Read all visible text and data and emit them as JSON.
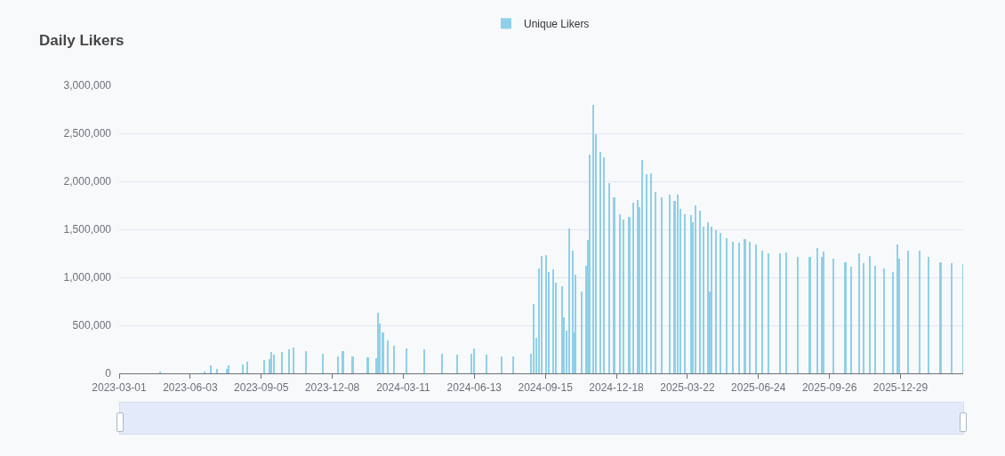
{
  "chart_data": {
    "type": "bar",
    "title": "Daily Likers",
    "legend": "top",
    "grid": "y",
    "x": [
      "2023-03-01",
      "2023-04-24",
      "2023-06-22",
      "2023-06-30",
      "2023-07-08",
      "2023-07-21",
      "2023-07-24",
      "2023-08-12",
      "2023-08-18",
      "2023-09-09",
      "2023-09-16",
      "2023-09-18",
      "2023-09-22",
      "2023-10-02",
      "2023-10-12",
      "2023-10-18",
      "2023-11-03",
      "2023-11-26",
      "2023-12-16",
      "2023-12-22",
      "2024-01-04",
      "2024-01-24",
      "2024-02-04",
      "2024-02-06",
      "2024-02-09",
      "2024-02-13",
      "2024-02-19",
      "2024-02-28",
      "2024-03-15",
      "2024-04-08",
      "2024-05-01",
      "2024-05-21",
      "2024-06-09",
      "2024-06-13",
      "2024-06-29",
      "2024-07-19",
      "2024-08-03",
      "2024-08-27",
      "2024-08-30",
      "2024-09-01",
      "2024-09-03",
      "2024-09-05",
      "2024-09-07",
      "2024-09-10",
      "2024-09-16",
      "2024-09-20",
      "2024-09-25",
      "2024-09-29",
      "2024-10-07",
      "2024-10-09",
      "2024-10-13",
      "2024-10-17",
      "2024-10-21",
      "2024-10-22",
      "2024-10-25",
      "2024-11-02",
      "2024-11-08",
      "2024-11-10",
      "2024-11-13",
      "2024-11-17",
      "2024-11-21",
      "2024-11-27",
      "2024-12-01",
      "2024-12-09",
      "2024-12-15",
      "2024-12-23",
      "2024-12-27",
      "2025-01-04",
      "2025-01-09",
      "2025-01-15",
      "2025-01-17",
      "2025-01-21",
      "2025-01-27",
      "2025-02-02",
      "2025-02-08",
      "2025-02-16",
      "2025-02-27",
      "2025-03-05",
      "2025-03-09",
      "2025-03-13",
      "2025-03-19",
      "2025-03-27",
      "2025-03-29",
      "2025-04-02",
      "2025-04-08",
      "2025-04-12",
      "2025-04-18",
      "2025-04-21",
      "2025-04-23",
      "2025-04-29",
      "2025-05-05",
      "2025-05-13",
      "2025-05-20",
      "2025-05-21",
      "2025-05-29",
      "2025-06-06",
      "2025-06-13",
      "2025-06-21",
      "2025-06-29",
      "2025-07-07",
      "2025-07-23",
      "2025-07-31",
      "2025-08-15",
      "2025-08-31",
      "2025-09-10",
      "2025-09-16",
      "2025-09-18",
      "2025-10-01",
      "2025-10-17",
      "2025-10-25",
      "2025-11-04",
      "2025-11-10",
      "2025-11-18",
      "2025-11-25",
      "2025-12-07",
      "2025-12-19",
      "2025-12-25",
      "2025-12-27",
      "2026-01-08",
      "2026-01-23",
      "2026-02-04",
      "2026-02-20",
      "2026-03-07",
      "2026-03-22"
    ],
    "series": [
      {
        "name": "Unique Likers",
        "color": "#8fd0e8",
        "values": [
          0,
          10000,
          20000,
          80000,
          50000,
          50000,
          80000,
          90000,
          120000,
          140000,
          150000,
          220000,
          190000,
          220000,
          250000,
          270000,
          230000,
          200000,
          180000,
          230000,
          180000,
          170000,
          160000,
          630000,
          520000,
          430000,
          340000,
          290000,
          260000,
          250000,
          200000,
          190000,
          200000,
          260000,
          190000,
          180000,
          180000,
          200000,
          720000,
          null,
          370000,
          null,
          1090000,
          1220000,
          1230000,
          1060000,
          1080000,
          940000,
          910000,
          580000,
          440000,
          1510000,
          1280000,
          430000,
          1030000,
          850000,
          1120000,
          1390000,
          2280000,
          2800000,
          2490000,
          2310000,
          2250000,
          1980000,
          1830000,
          1660000,
          1600000,
          1630000,
          1780000,
          1810000,
          1730000,
          2220000,
          2070000,
          2080000,
          1890000,
          1830000,
          1860000,
          1800000,
          1860000,
          1710000,
          1660000,
          1650000,
          1570000,
          1750000,
          1690000,
          1530000,
          1570000,
          850000,
          1530000,
          1490000,
          1460000,
          1410000,
          null,
          1370000,
          1360000,
          1400000,
          1370000,
          1340000,
          1280000,
          1250000,
          1250000,
          1260000,
          1210000,
          1210000,
          1310000,
          1210000,
          1270000,
          1190000,
          1160000,
          1110000,
          1250000,
          1150000,
          1220000,
          1120000,
          1090000,
          1060000,
          1340000,
          1190000,
          1280000,
          1280000,
          1210000,
          1160000,
          1150000,
          1140000
        ]
      }
    ],
    "xlim": [
      "2023-03-01",
      "2026-03-22"
    ],
    "xticks": [
      "2023-03-01",
      "2023-06-03",
      "2023-09-05",
      "2023-12-08",
      "2024-03-11",
      "2024-06-13",
      "2024-09-15",
      "2024-12-18",
      "2025-03-22",
      "2025-06-24",
      "2025-09-26",
      "2025-12-29"
    ],
    "ylim": [
      0,
      3000000
    ],
    "yticks": [
      0,
      {
        "value": 500000,
        "label": "500,000"
      },
      {
        "value": 1000000,
        "label": "1,000,000"
      },
      {
        "value": 1500000,
        "label": "1,500,000"
      },
      {
        "value": 2000000,
        "label": "2,000,000"
      },
      {
        "value": 2500000,
        "label": "2,500,000"
      },
      {
        "value": 3000000,
        "label": "3,000,000"
      }
    ]
  }
}
